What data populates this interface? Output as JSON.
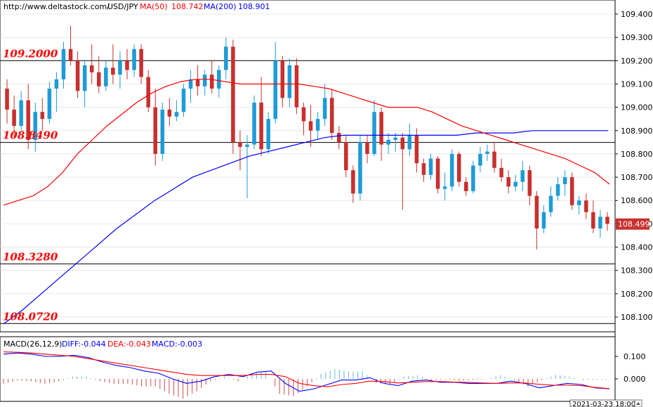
{
  "header": {
    "url": "http://www.deltastock.com/",
    "symbol": "USD/JPY",
    "ma50_label": "MA(50)",
    "ma50_value": "108.742",
    "ma200_label": "MA(200)",
    "ma200_value": "108.901"
  },
  "macd_header": {
    "label": "MACD(26,12,9)",
    "diff": "DIFF:-0.044",
    "dea": "DEA:-0.043",
    "macd": "MACD:-0.003"
  },
  "timestamp": "2021-03-23 18:00",
  "colors": {
    "up": "#1e9bd7",
    "down": "#c8302e",
    "ma50": "#ff0000",
    "ma200": "#0000ff",
    "macd_bar_up": "#7fc4e6",
    "macd_bar_down": "#d46a6a"
  },
  "chart_data": [
    {
      "type": "candlestick",
      "symbol": "USD/JPY",
      "ylim": [
        108.04,
        109.46
      ],
      "y_ticks": [
        "109.400",
        "109.300",
        "109.200",
        "109.100",
        "109.000",
        "108.900",
        "108.800",
        "108.700",
        "108.600",
        "108.500",
        "108.400",
        "108.300",
        "108.200",
        "108.100"
      ],
      "last_price": "108.499",
      "levels": [
        {
          "label": "109.2000",
          "value": 109.2
        },
        {
          "label": "108.8490",
          "value": 108.849
        },
        {
          "label": "108.3280",
          "value": 108.328
        },
        {
          "label": "108.0720",
          "value": 108.072
        }
      ],
      "ma50": [
        108.58,
        108.6,
        108.62,
        108.66,
        108.72,
        108.8,
        108.86,
        108.92,
        108.97,
        109.02,
        109.06,
        109.09,
        109.11,
        109.12,
        109.12,
        109.11,
        109.1,
        109.1,
        109.1,
        109.1,
        109.1,
        109.09,
        109.08,
        109.06,
        109.04,
        109.02,
        109.0,
        109.0,
        109.0,
        108.98,
        108.95,
        108.92,
        108.9,
        108.88,
        108.86,
        108.84,
        108.82,
        108.8,
        108.78,
        108.75,
        108.72,
        108.67
      ],
      "ma200": [
        108.07,
        108.13,
        108.2,
        108.27,
        108.34,
        108.41,
        108.48,
        108.54,
        108.6,
        108.65,
        108.7,
        108.73,
        108.76,
        108.79,
        108.81,
        108.83,
        108.85,
        108.87,
        108.88,
        108.88,
        108.88,
        108.88,
        108.88,
        108.88,
        108.88,
        108.89,
        108.89,
        108.89,
        108.9,
        108.9,
        108.9,
        108.9,
        108.9
      ],
      "candles": [
        [
          109.08,
          109.12,
          108.93,
          108.99
        ],
        [
          108.99,
          109.05,
          108.87,
          108.92
        ],
        [
          108.92,
          109.07,
          108.9,
          109.03
        ],
        [
          109.03,
          109.1,
          108.82,
          108.86
        ],
        [
          108.86,
          109.02,
          108.81,
          108.98
        ],
        [
          108.98,
          109.04,
          108.9,
          108.95
        ],
        [
          108.95,
          109.11,
          108.93,
          109.08
        ],
        [
          109.08,
          109.15,
          108.98,
          109.12
        ],
        [
          109.12,
          109.28,
          109.08,
          109.25
        ],
        [
          109.25,
          109.35,
          109.18,
          109.2
        ],
        [
          109.2,
          109.24,
          109.04,
          109.07
        ],
        [
          109.07,
          109.2,
          109.0,
          109.18
        ],
        [
          109.18,
          109.27,
          109.1,
          109.15
        ],
        [
          109.15,
          109.22,
          109.06,
          109.09
        ],
        [
          109.09,
          109.2,
          109.07,
          109.17
        ],
        [
          109.17,
          109.27,
          109.1,
          109.14
        ],
        [
          109.14,
          109.24,
          109.08,
          109.2
        ],
        [
          109.2,
          109.25,
          109.12,
          109.16
        ],
        [
          109.16,
          109.27,
          109.13,
          109.25
        ],
        [
          109.25,
          109.27,
          109.1,
          109.13
        ],
        [
          109.13,
          109.16,
          108.98,
          109.0
        ],
        [
          109.0,
          109.08,
          108.75,
          108.8
        ],
        [
          108.8,
          109.02,
          108.77,
          108.99
        ],
        [
          108.99,
          109.04,
          108.92,
          108.96
        ],
        [
          108.96,
          109.03,
          108.94,
          108.98
        ],
        [
          108.98,
          109.1,
          108.96,
          109.08
        ],
        [
          109.08,
          109.16,
          109.02,
          109.12
        ],
        [
          109.12,
          109.18,
          109.05,
          109.09
        ],
        [
          109.09,
          109.16,
          109.05,
          109.14
        ],
        [
          109.14,
          109.2,
          109.06,
          109.08
        ],
        [
          109.08,
          109.18,
          109.04,
          109.16
        ],
        [
          109.16,
          109.3,
          109.12,
          109.26
        ],
        [
          109.26,
          109.29,
          108.8,
          108.85
        ],
        [
          108.85,
          108.9,
          108.73,
          108.83
        ],
        [
          108.83,
          108.88,
          108.61,
          108.84
        ],
        [
          108.84,
          109.05,
          108.82,
          109.02
        ],
        [
          109.02,
          109.13,
          108.79,
          108.82
        ],
        [
          108.82,
          108.98,
          108.8,
          108.95
        ],
        [
          108.95,
          109.28,
          108.93,
          109.2
        ],
        [
          109.2,
          109.22,
          109.0,
          109.04
        ],
        [
          109.04,
          109.21,
          109.0,
          109.18
        ],
        [
          109.18,
          109.21,
          108.97,
          109.0
        ],
        [
          109.0,
          109.02,
          108.88,
          108.94
        ],
        [
          108.94,
          109.01,
          108.83,
          108.9
        ],
        [
          108.9,
          108.98,
          108.86,
          108.95
        ],
        [
          108.95,
          109.1,
          108.92,
          109.04
        ],
        [
          109.04,
          109.08,
          108.86,
          108.89
        ],
        [
          108.89,
          108.92,
          108.82,
          108.85
        ],
        [
          108.85,
          108.88,
          108.7,
          108.73
        ],
        [
          108.73,
          108.75,
          108.59,
          108.63
        ],
        [
          108.63,
          108.88,
          108.6,
          108.85
        ],
        [
          108.85,
          108.88,
          108.76,
          108.8
        ],
        [
          108.8,
          109.03,
          108.79,
          108.98
        ],
        [
          108.98,
          109.0,
          108.77,
          108.84
        ],
        [
          108.84,
          108.89,
          108.8,
          108.86
        ],
        [
          108.86,
          108.89,
          108.81,
          108.87
        ],
        [
          108.87,
          108.89,
          108.56,
          108.82
        ],
        [
          108.82,
          108.93,
          108.79,
          108.88
        ],
        [
          108.88,
          108.91,
          108.72,
          108.76
        ],
        [
          108.76,
          108.78,
          108.68,
          108.71
        ],
        [
          108.71,
          108.8,
          108.69,
          108.78
        ],
        [
          108.78,
          108.79,
          108.63,
          108.65
        ],
        [
          108.65,
          108.72,
          108.6,
          108.66
        ],
        [
          108.66,
          108.82,
          108.64,
          108.8
        ],
        [
          108.8,
          108.81,
          108.66,
          108.68
        ],
        [
          108.68,
          108.7,
          108.62,
          108.64
        ],
        [
          108.64,
          108.77,
          108.63,
          108.75
        ],
        [
          108.75,
          108.83,
          108.72,
          108.8
        ],
        [
          108.8,
          108.84,
          108.77,
          108.81
        ],
        [
          108.81,
          108.85,
          108.72,
          108.74
        ],
        [
          108.74,
          108.78,
          108.68,
          108.7
        ],
        [
          108.7,
          108.73,
          108.63,
          108.66
        ],
        [
          108.66,
          108.71,
          108.64,
          108.68
        ],
        [
          108.68,
          108.77,
          108.64,
          108.73
        ],
        [
          108.73,
          108.75,
          108.58,
          108.62
        ],
        [
          108.62,
          108.64,
          108.39,
          108.48
        ],
        [
          108.48,
          108.58,
          108.46,
          108.55
        ],
        [
          108.55,
          108.66,
          108.53,
          108.62
        ],
        [
          108.62,
          108.7,
          108.6,
          108.67
        ],
        [
          108.67,
          108.73,
          108.62,
          108.7
        ],
        [
          108.7,
          108.72,
          108.56,
          108.58
        ],
        [
          108.58,
          108.62,
          108.54,
          108.6
        ],
        [
          108.6,
          108.63,
          108.52,
          108.55
        ],
        [
          108.55,
          108.6,
          108.46,
          108.48
        ],
        [
          108.48,
          108.56,
          108.44,
          108.53
        ],
        [
          108.53,
          108.55,
          108.47,
          108.5
        ]
      ]
    },
    {
      "type": "macd",
      "label": "MACD(26,12,9)",
      "ylim": [
        -0.08,
        0.15
      ],
      "y_ticks": [
        "0.100",
        "0.000"
      ],
      "diff": [
        0.11,
        0.115,
        0.11,
        0.1,
        0.1,
        0.105,
        0.095,
        0.075,
        0.06,
        0.05,
        0.035,
        0.025,
        0.0,
        -0.02,
        -0.01,
        0.01,
        0.02,
        0.01,
        0.03,
        0.035,
        -0.02,
        -0.055,
        -0.045,
        -0.025,
        -0.005,
        -0.005,
        0.005,
        -0.02,
        -0.03,
        -0.01,
        -0.005,
        -0.015,
        -0.015,
        -0.02,
        -0.02,
        -0.02,
        -0.01,
        -0.02,
        -0.04,
        -0.03,
        -0.02,
        -0.025,
        -0.04,
        -0.044
      ],
      "dea": [
        0.12,
        0.118,
        0.115,
        0.11,
        0.105,
        0.1,
        0.09,
        0.08,
        0.07,
        0.06,
        0.05,
        0.04,
        0.03,
        0.02,
        0.015,
        0.015,
        0.015,
        0.015,
        0.02,
        0.02,
        0.01,
        -0.02,
        -0.03,
        -0.035,
        -0.025,
        -0.02,
        -0.01,
        -0.012,
        -0.018,
        -0.015,
        -0.012,
        -0.012,
        -0.014,
        -0.016,
        -0.018,
        -0.02,
        -0.018,
        -0.018,
        -0.024,
        -0.028,
        -0.028,
        -0.03,
        -0.038,
        -0.043
      ],
      "macd_last": -0.003
    }
  ]
}
